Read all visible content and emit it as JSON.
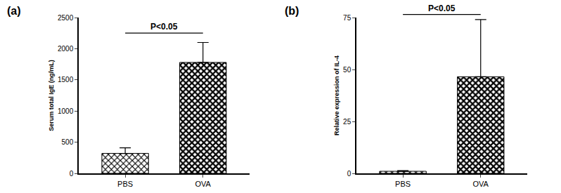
{
  "chart_data": [
    {
      "type": "bar",
      "title": "(a)",
      "y_label": "Serum total IgE (ng/mL)",
      "categories": [
        "PBS",
        "OVA"
      ],
      "values": [
        320,
        1780
      ],
      "errors": [
        90,
        320
      ],
      "color": "#000000",
      "ylim": [
        0,
        2500
      ],
      "yticks": [
        0,
        500,
        1000,
        1500,
        2000,
        2500
      ],
      "grid": false,
      "annotations": [
        "P<0.05"
      ]
    },
    {
      "type": "bar",
      "title": "(b)",
      "y_label": "Relative expression of IL-4",
      "categories": [
        "PBS",
        "OVA"
      ],
      "values": [
        1,
        46.5
      ],
      "errors": [
        0.3,
        27.5
      ],
      "color": "#000000",
      "ylim": [
        0,
        75
      ],
      "yticks": [
        0,
        25,
        50,
        75
      ],
      "grid": false,
      "annotations": [
        "P<0.05"
      ]
    }
  ]
}
